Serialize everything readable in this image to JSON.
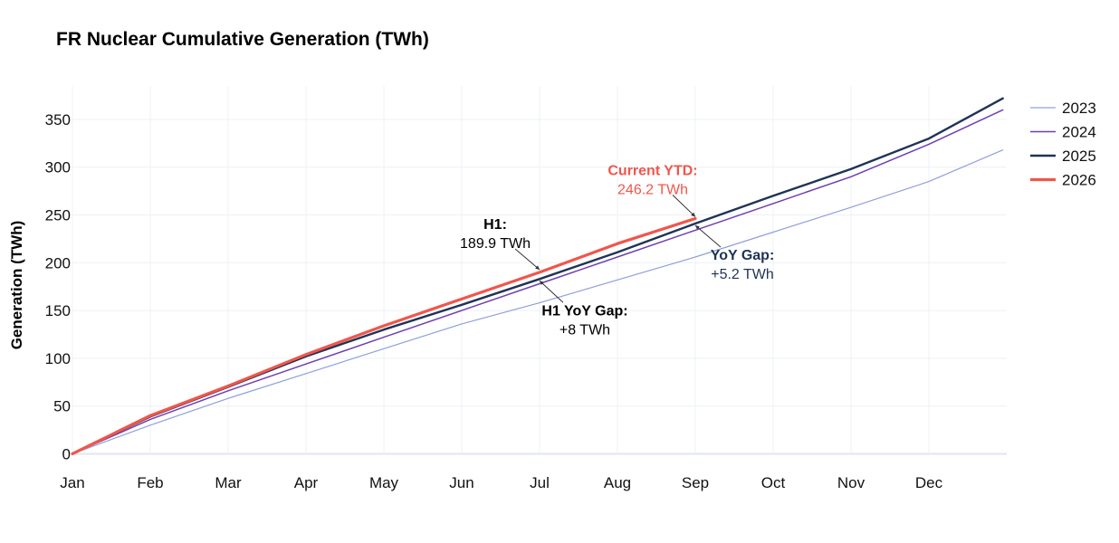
{
  "chart_data": {
    "type": "line",
    "title": "FR Nuclear Cumulative Generation (TWh)",
    "xlabel": "",
    "ylabel": "Generation (TWh)",
    "x_tick_labels": [
      "Jan",
      "Feb",
      "Mar",
      "Apr",
      "May",
      "Jun",
      "Jul",
      "Aug",
      "Sep",
      "Oct",
      "Nov",
      "Dec"
    ],
    "y_ticks": [
      0,
      50,
      100,
      150,
      200,
      250,
      300,
      350
    ],
    "ylim": [
      -10,
      385
    ],
    "xlim": [
      0,
      12
    ],
    "x_unit": "month index (0 = Jan 1)",
    "grid": true,
    "legend_position": "top-right",
    "series": [
      {
        "name": "2023",
        "color": "#8fa0db",
        "width": 1.2,
        "x": [
          0,
          1,
          2,
          3,
          4,
          5,
          6,
          7,
          8,
          9,
          10,
          11,
          11.95
        ],
        "y": [
          0,
          30,
          58,
          84,
          110,
          136,
          158,
          182,
          206,
          232,
          258,
          285,
          318
        ]
      },
      {
        "name": "2024",
        "color": "#6e3fb0",
        "width": 1.5,
        "x": [
          0,
          1,
          2,
          3,
          4,
          5,
          6,
          7,
          8,
          9,
          10,
          11,
          11.95
        ],
        "y": [
          0,
          36,
          66,
          94,
          122,
          150,
          178,
          206,
          234,
          262,
          290,
          324,
          360
        ]
      },
      {
        "name": "2025",
        "color": "#1f3355",
        "width": 2.4,
        "x": [
          0,
          1,
          2,
          3,
          4,
          5,
          6,
          7,
          8,
          9,
          10,
          11,
          11.95
        ],
        "y": [
          0,
          39,
          70,
          102,
          130,
          156,
          183,
          211,
          241,
          270,
          298,
          330,
          372
        ]
      },
      {
        "name": "2026",
        "color": "#f0564c",
        "width": 3.2,
        "x": [
          0,
          1,
          2,
          3,
          4,
          5,
          6,
          7,
          8
        ],
        "y": [
          0,
          40,
          71,
          104,
          134,
          162,
          190,
          220,
          246.2
        ]
      }
    ],
    "annotations": [
      {
        "title": "H1:",
        "value": "189.9 TWh",
        "color": "#000000",
        "x": 6,
        "y": 189.9
      },
      {
        "title": "H1 YoY Gap:",
        "value": "+8 TWh",
        "color": "#000000",
        "x": 6,
        "y": 183
      },
      {
        "title": "Current YTD:",
        "value": "246.2 TWh",
        "color": "#f0564c",
        "x": 8,
        "y": 246.2
      },
      {
        "title": "YoY Gap:",
        "value": "+5.2 TWh",
        "color": "#1f3355",
        "x": 8,
        "y": 241
      }
    ]
  }
}
